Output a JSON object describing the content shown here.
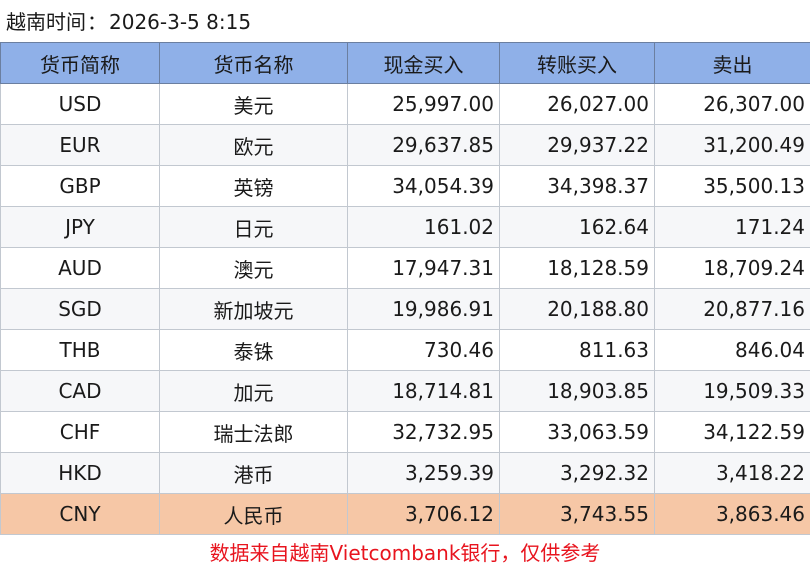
{
  "title": {
    "label": "越南时间",
    "separator": "：",
    "datetime": "2026-3-5 8:15"
  },
  "table": {
    "headers": {
      "code": "货币简称",
      "name": "货币名称",
      "cash_buy": "现金买入",
      "transfer_buy": "转账买入",
      "sell": "卖出"
    },
    "rows": [
      {
        "code": "USD",
        "name": "美元",
        "cash_buy": "25,997.00",
        "transfer_buy": "26,027.00",
        "sell": "26,307.00"
      },
      {
        "code": "EUR",
        "name": "欧元",
        "cash_buy": "29,637.85",
        "transfer_buy": "29,937.22",
        "sell": "31,200.49"
      },
      {
        "code": "GBP",
        "name": "英镑",
        "cash_buy": "34,054.39",
        "transfer_buy": "34,398.37",
        "sell": "35,500.13"
      },
      {
        "code": "JPY",
        "name": "日元",
        "cash_buy": "161.02",
        "transfer_buy": "162.64",
        "sell": "171.24"
      },
      {
        "code": "AUD",
        "name": "澳元",
        "cash_buy": "17,947.31",
        "transfer_buy": "18,128.59",
        "sell": "18,709.24"
      },
      {
        "code": "SGD",
        "name": "新加坡元",
        "cash_buy": "19,986.91",
        "transfer_buy": "20,188.80",
        "sell": "20,877.16"
      },
      {
        "code": "THB",
        "name": "泰铢",
        "cash_buy": "730.46",
        "transfer_buy": "811.63",
        "sell": "846.04"
      },
      {
        "code": "CAD",
        "name": "加元",
        "cash_buy": "18,714.81",
        "transfer_buy": "18,903.85",
        "sell": "19,509.33"
      },
      {
        "code": "CHF",
        "name": "瑞士法郎",
        "cash_buy": "32,732.95",
        "transfer_buy": "33,063.59",
        "sell": "34,122.59"
      },
      {
        "code": "HKD",
        "name": "港币",
        "cash_buy": "3,259.39",
        "transfer_buy": "3,292.32",
        "sell": "3,418.22"
      },
      {
        "code": "CNY",
        "name": "人民币",
        "cash_buy": "3,706.12",
        "transfer_buy": "3,743.55",
        "sell": "3,863.46"
      }
    ],
    "highlight_code": "CNY"
  },
  "footer": {
    "note": "数据来自越南Vietcombank银行，仅供参考"
  },
  "colors": {
    "header_bg": "#8fb0e8",
    "highlight_row_bg": "#f6c7a6",
    "footer_text": "#e8141e"
  }
}
